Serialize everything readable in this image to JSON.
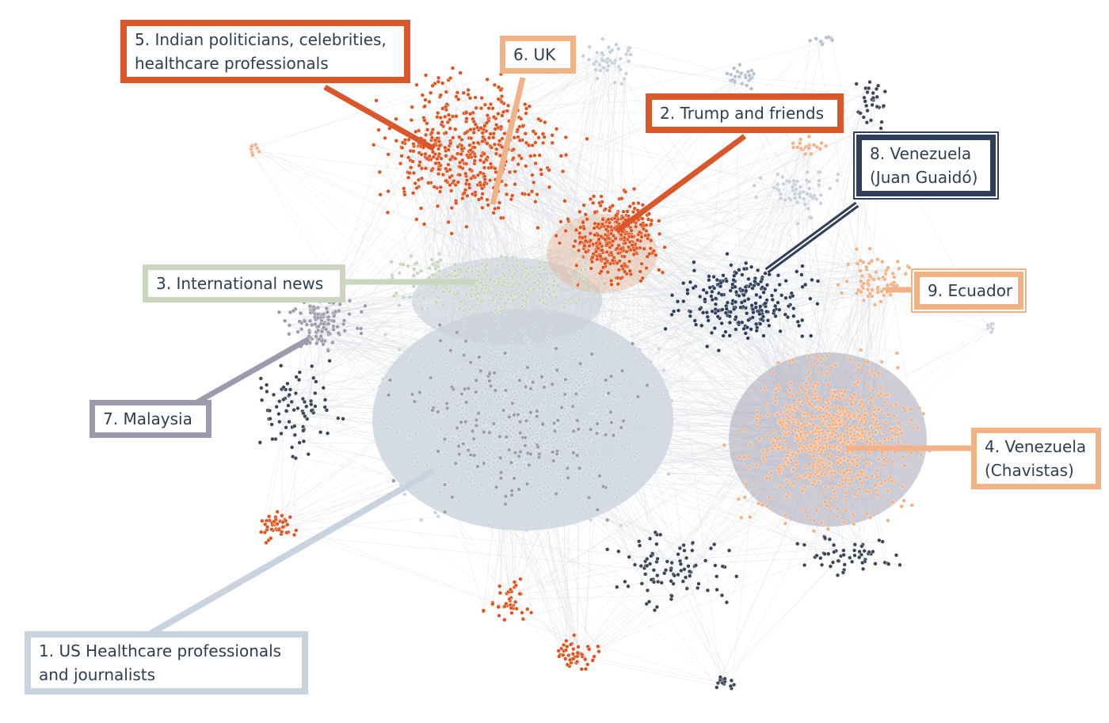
{
  "colors": {
    "us_healthcare": "#c9d2df",
    "trump": "#e0541f",
    "international": "#c8d6bf",
    "venezuela_chavistas": "#f3b285",
    "india": "#e0541f",
    "uk": "#f3b285",
    "malaysia": "#9c9aad",
    "venezuela_guaido": "#2f3f5b",
    "ecuador": "#f3b285",
    "edges": "#d8dde2"
  },
  "labels": [
    {
      "id": "c1",
      "lines": [
        "1. US Healthcare professionals",
        "and journalists"
      ],
      "color": "#c9d2df"
    },
    {
      "id": "c2",
      "lines": [
        "2. Trump and friends"
      ],
      "color": "#d9572b"
    },
    {
      "id": "c3",
      "lines": [
        "3. International news"
      ],
      "color": "#cad6c0"
    },
    {
      "id": "c4",
      "lines": [
        "4. Venezuela",
        "(Chavistas)"
      ],
      "color": "#f1b285"
    },
    {
      "id": "c5",
      "lines": [
        "5. Indian politicians, celebrities,",
        "healthcare professionals"
      ],
      "color": "#d9572b"
    },
    {
      "id": "c6",
      "lines": [
        "6. UK"
      ],
      "color": "#f1b285"
    },
    {
      "id": "c7",
      "lines": [
        "7. Malaysia"
      ],
      "color": "#9c9aad"
    },
    {
      "id": "c8",
      "lines": [
        "8. Venezuela",
        "(Juan Guaidó)"
      ],
      "color": "#2f3f5b"
    },
    {
      "id": "c9",
      "lines": [
        "9. Ecuador"
      ],
      "color": "#f1b285"
    }
  ]
}
